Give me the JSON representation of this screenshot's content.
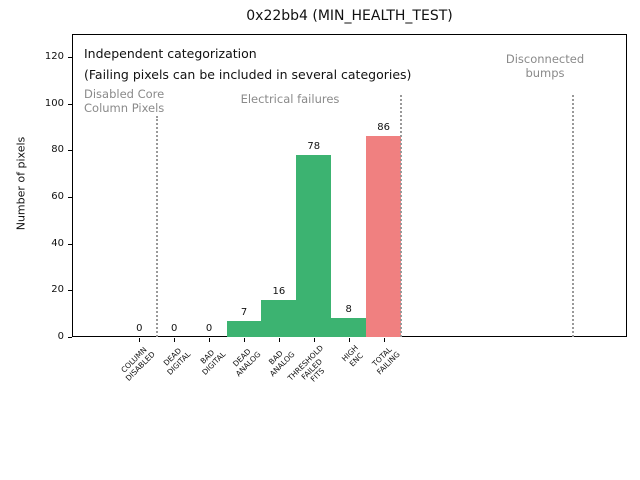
{
  "chart_data": {
    "type": "bar",
    "title": "0x22bb4 (MIN_HEALTH_TEST)",
    "xlabel": "",
    "ylabel": "Number of pixels",
    "ylim": [
      0,
      129
    ],
    "yticks": [
      0,
      20,
      40,
      60,
      80,
      100,
      120
    ],
    "grid": false,
    "legend": "none",
    "categories": [
      "COLUMN\nDISABLED",
      "DEAD\nDIGITAL",
      "BAD\nDIGITAL",
      "DEAD\nANALOG",
      "BAD\nANALOG",
      "THRESHOLD\nFAILED\nFITS",
      "HIGH\nENC",
      "TOTAL\nFAILING"
    ],
    "values": [
      0,
      0,
      0,
      7,
      16,
      78,
      8,
      86
    ],
    "value_labels": [
      "0",
      "0",
      "0",
      "7",
      "16",
      "78",
      "8",
      "86"
    ],
    "bar_colors": [
      "#3cb371",
      "#3cb371",
      "#3cb371",
      "#3cb371",
      "#3cb371",
      "#3cb371",
      "#3cb371",
      "#f08080"
    ],
    "separators_x_units": [
      0.5,
      7.5,
      12.43
    ],
    "annotations": {
      "independent": "Independent categorization",
      "failing_note": "(Failing pixels can be included in several categories)",
      "disabled_core": "Disabled Core\nColumn Pixels",
      "electrical": "Electrical failures",
      "disconnected": "Disconnected\nbumps"
    }
  },
  "colors": {
    "bar_green": "#3cb371",
    "bar_red": "#f08080",
    "annotation_gray": "#8a8a8a",
    "separator_gray": "#999999",
    "axis": "#000000"
  }
}
